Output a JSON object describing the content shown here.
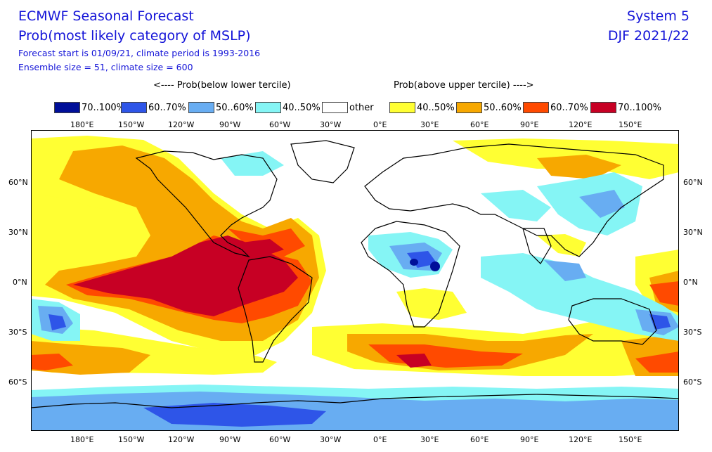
{
  "title": "ECMWF Seasonal Forecast",
  "subtitle": "Prob(most likely category of MSLP)",
  "info_line1": "Forecast start is 01/09/21, climate period is 1993-2016",
  "info_line2": "Ensemble size = 51, climate size = 600",
  "system": "System 5",
  "period": "DJF 2021/22",
  "legend_left_header": "<---- Prob(below lower tercile)",
  "legend_right_header": "Prob(above upper tercile) ---->",
  "legend": [
    {
      "label": "70..100%",
      "color": "#000f99"
    },
    {
      "label": "60..70%",
      "color": "#2e55e8"
    },
    {
      "label": "50..60%",
      "color": "#68adf2"
    },
    {
      "label": "40..50%",
      "color": "#85f5f5"
    },
    {
      "label": "other",
      "color": "#ffffff"
    },
    {
      "label": "40..50%",
      "color": "#ffff33"
    },
    {
      "label": "50..60%",
      "color": "#f7a800"
    },
    {
      "label": "60..70%",
      "color": "#ff4a00"
    },
    {
      "label": "70..100%",
      "color": "#c70024"
    }
  ],
  "lon_ticks": [
    "180°E",
    "150°W",
    "120°W",
    "90°W",
    "60°W",
    "30°W",
    "0°E",
    "30°E",
    "60°E",
    "90°E",
    "120°E",
    "150°E"
  ],
  "lat_ticks": [
    "60°N",
    "30°N",
    "0°N",
    "30°S",
    "60°S"
  ]
}
